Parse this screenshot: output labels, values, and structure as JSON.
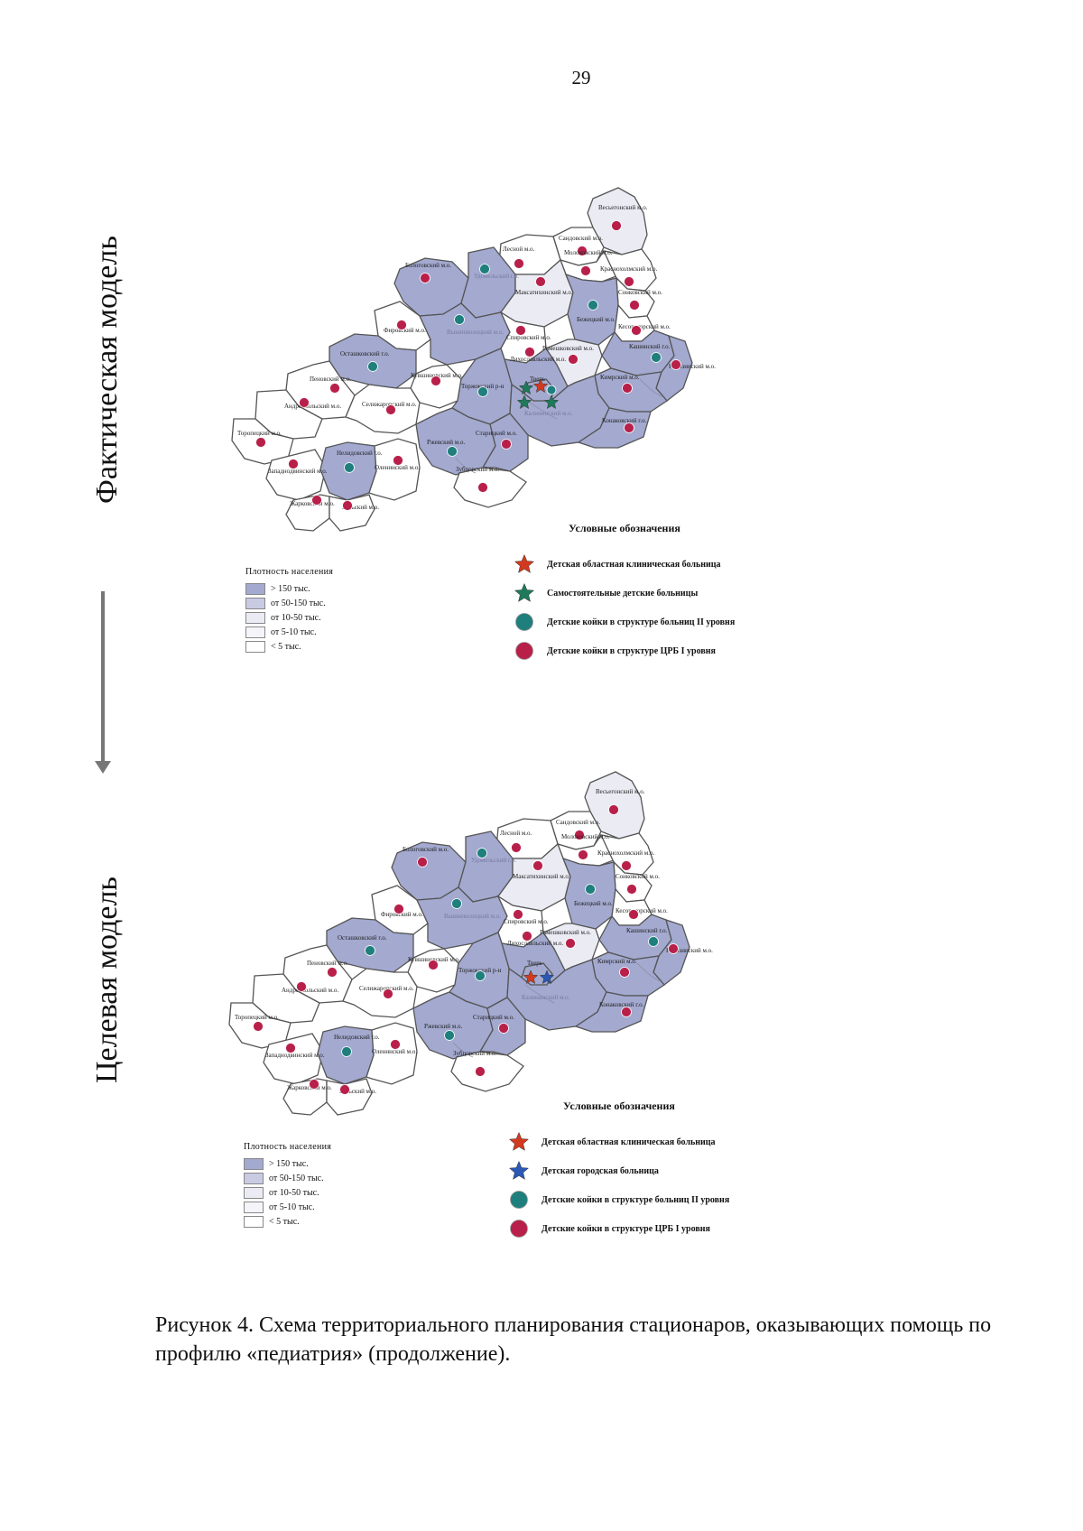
{
  "page_number": "29",
  "side_labels": {
    "actual": "Фактическая модель",
    "target": "Целевая модель"
  },
  "colors": {
    "dense": "#a3a9cf",
    "mid": "#c9cbe3",
    "light1": "#ebebf4",
    "light2": "#f4f4f9",
    "white": "#ffffff",
    "red_star": "#d23a1f",
    "green_star": "#1f7a5c",
    "blue_star": "#2b58b5",
    "teal_dot": "#1f7f7c",
    "crimson_dot": "#b8204a"
  },
  "regions": [
    {
      "id": "vesegonsky",
      "name": "Весьегонский м.о.",
      "density": "light1",
      "dot": "crimson"
    },
    {
      "id": "sandovsky",
      "name": "Сандовский м.о.",
      "density": "white",
      "dot": "crimson"
    },
    {
      "id": "lesnoy",
      "name": "Лесной м.о.",
      "density": "white",
      "dot": "crimson"
    },
    {
      "id": "molokovsky",
      "name": "Молоковский м.о.",
      "density": "white",
      "dot": "crimson"
    },
    {
      "id": "krasnokholmsky",
      "name": "Краснохолмский м.о.",
      "density": "white",
      "dot": "crimson"
    },
    {
      "id": "sonkovsky",
      "name": "Сонковский м.о.",
      "density": "white",
      "dot": "crimson"
    },
    {
      "id": "bologovsky",
      "name": "Бологовский м.о.",
      "density": "dense",
      "dot": "crimson"
    },
    {
      "id": "udomelsky",
      "name": "Удомельский г.о.",
      "density": "dense",
      "dot": "teal",
      "light": true
    },
    {
      "id": "maksatikhinsky",
      "name": "Максатихинский м.о.",
      "density": "light1",
      "dot": "crimson"
    },
    {
      "id": "bezhetsky",
      "name": "Бежецкий м.о.",
      "density": "dense",
      "dot": "teal"
    },
    {
      "id": "kesovogorsky",
      "name": "Кесовогорский м.о.",
      "density": "white",
      "dot": "crimson"
    },
    {
      "id": "firovsky",
      "name": "Фировский м.о.",
      "density": "white",
      "dot": "crimson"
    },
    {
      "id": "vyshnevolotsky",
      "name": "Вышневолоцкий м.о.",
      "density": "dense",
      "dot": "teal",
      "light": true
    },
    {
      "id": "spirovsky",
      "name": "Спировский м.о.",
      "density": "white",
      "dot": "crimson"
    },
    {
      "id": "kashinsky",
      "name": "Кашинский г.о.",
      "density": "dense",
      "dot": "teal"
    },
    {
      "id": "kalyazinsky",
      "name": "Калязинский м.о.",
      "density": "dense",
      "dot": "crimson"
    },
    {
      "id": "ostashkovsky",
      "name": "Осташковский г.о.",
      "density": "dense",
      "dot": "teal"
    },
    {
      "id": "likhoslavlsky",
      "name": "Лихославльский м.о.",
      "density": "dense",
      "dot": "crimson"
    },
    {
      "id": "rameshkovsky",
      "name": "Рамешковский м.о.",
      "density": "light1",
      "dot": "crimson"
    },
    {
      "id": "penovsky",
      "name": "Пеновский м.о.",
      "density": "white",
      "dot": "crimson"
    },
    {
      "id": "kuvshinovsky",
      "name": "Кувшиновский м.о.",
      "density": "white",
      "dot": "crimson"
    },
    {
      "id": "torzhoksky",
      "name": "Торжокский р-н",
      "density": "dense",
      "dot": "teal"
    },
    {
      "id": "kimrsky",
      "name": "Кимрский м.о.",
      "density": "dense",
      "dot": "crimson"
    },
    {
      "id": "andreapolsky",
      "name": "Андреапольский м.о.",
      "density": "white",
      "dot": "crimson"
    },
    {
      "id": "selizharovsky",
      "name": "Селижаровский м.о.",
      "density": "white",
      "dot": "crimson"
    },
    {
      "id": "kalininsky",
      "name": "Калининский м.о.",
      "density": "dense",
      "dot": "none",
      "light": true
    },
    {
      "id": "tver",
      "name": "Тверь",
      "density": "dense",
      "dot": "none"
    },
    {
      "id": "konakovsky",
      "name": "Конаковский г.о.",
      "density": "dense",
      "dot": "crimson"
    },
    {
      "id": "toropetsky",
      "name": "Торопецкий м.о.",
      "density": "white",
      "dot": "crimson"
    },
    {
      "id": "rzhevsky",
      "name": "Ржевский м.о.",
      "density": "dense",
      "dot": "teal"
    },
    {
      "id": "staritsky",
      "name": "Старицкий м.о.",
      "density": "dense",
      "dot": "crimson"
    },
    {
      "id": "zapadnodvinsky",
      "name": "Западнодвинский м.о.",
      "density": "white",
      "dot": "crimson"
    },
    {
      "id": "nelidovsky",
      "name": "Нелидовский г.о.",
      "density": "dense",
      "dot": "teal"
    },
    {
      "id": "olenunsky",
      "name": "Оленинский м.о.",
      "density": "white",
      "dot": "crimson"
    },
    {
      "id": "zubtsovsky",
      "name": "Зубцовский м.о.",
      "density": "white",
      "dot": "crimson"
    },
    {
      "id": "zharkovsky",
      "name": "Жарковский м.о.",
      "density": "white",
      "dot": "crimson"
    },
    {
      "id": "belsky",
      "name": "Бельский м.о.",
      "density": "white",
      "dot": "crimson"
    }
  ],
  "density_legend": {
    "title": "Плотность населения",
    "items": [
      {
        "label": "> 150 тыс.",
        "color": "#a3a9cf"
      },
      {
        "label": "от 50-150 тыс.",
        "color": "#c9cbe3"
      },
      {
        "label": "от 10-50 тыс.",
        "color": "#ebebf4"
      },
      {
        "label": "от 5-10 тыс.",
        "color": "#f4f4f9"
      },
      {
        "label": "< 5 тыс.",
        "color": "#ffffff"
      }
    ]
  },
  "maps": {
    "actual": {
      "legend_title": "Условные обозначения",
      "legend": [
        {
          "symbol": "star",
          "color": "#d23a1f",
          "label": "Детская областная клиническая больница"
        },
        {
          "symbol": "star",
          "color": "#1f7a5c",
          "label": "Самостоятельные детские больницы"
        },
        {
          "symbol": "dot",
          "color": "#1f7f7c",
          "label": "Детские койки в структуре больниц II уровня"
        },
        {
          "symbol": "dot",
          "color": "#b8204a",
          "label": "Детские койки в структуре ЦРБ I уровня"
        }
      ],
      "tver_markers": [
        {
          "type": "star",
          "color": "red_star"
        },
        {
          "type": "star",
          "color": "green_star"
        },
        {
          "type": "star",
          "color": "green_star"
        },
        {
          "type": "star",
          "color": "green_star"
        },
        {
          "type": "dot",
          "color": "teal_dot"
        }
      ]
    },
    "target": {
      "legend_title": "Условные обозначения",
      "legend": [
        {
          "symbol": "star",
          "color": "#d23a1f",
          "label": "Детская областная клиническая больница"
        },
        {
          "symbol": "star",
          "color": "#2b58b5",
          "label": "Детская городская больница"
        },
        {
          "symbol": "dot",
          "color": "#1f7f7c",
          "label": "Детские койки в структуре больниц II уровня"
        },
        {
          "symbol": "dot",
          "color": "#b8204a",
          "label": "Детские койки в структуре ЦРБ I уровня"
        }
      ],
      "tver_markers": [
        {
          "type": "star",
          "color": "red_star"
        },
        {
          "type": "star",
          "color": "blue_star"
        }
      ]
    }
  },
  "caption": "Рисунок 4. Схема территориального планирования стационаров, оказывающих помощь по профилю «педиатрия» (продолжение)."
}
